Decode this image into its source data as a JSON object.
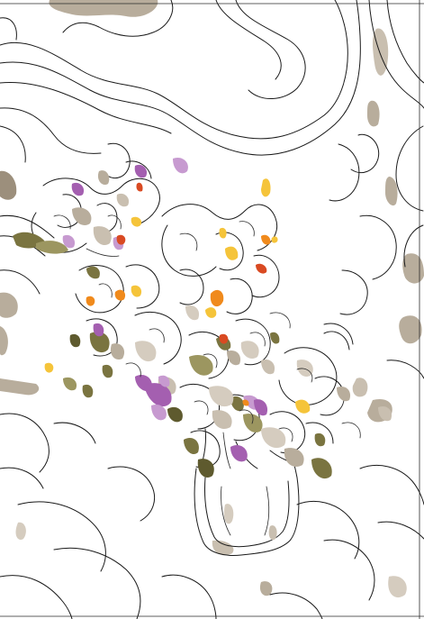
{
  "artwork": {
    "subject": "",
    "palette": {
      "background": "#ffffff",
      "outline": "#1a1a1a",
      "taupe": "#b8ad9c",
      "taupe_dark": "#9c8f7c",
      "olive": "#7a7440",
      "olive_dark": "#5e5a2e",
      "purple": "#a45fb0",
      "lavender": "#c79ad0",
      "orange": "#f08a1c",
      "yellow": "#f5c43a",
      "red": "#d94a22"
    }
  }
}
